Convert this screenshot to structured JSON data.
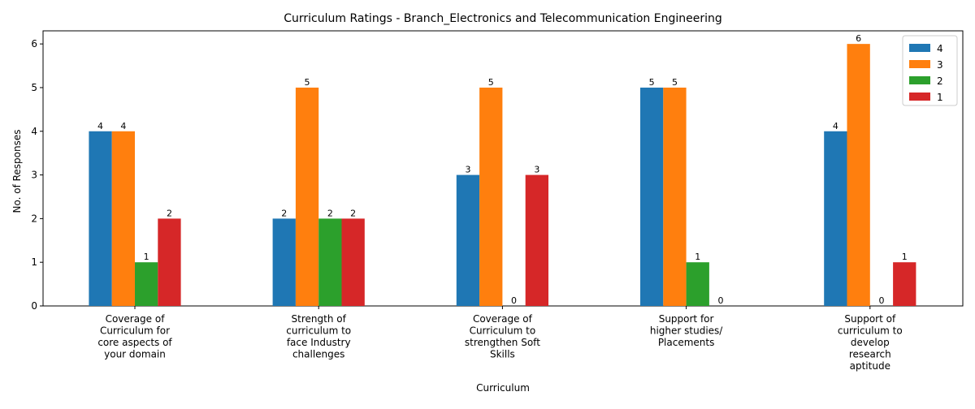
{
  "chart_data": {
    "type": "bar",
    "title": "Curriculum Ratings - Branch_Electronics and Telecommunication Engineering",
    "xlabel": "Curriculum",
    "ylabel": "No. of Responses",
    "ylim": [
      0,
      6.3
    ],
    "yticks": [
      0,
      1,
      2,
      3,
      4,
      5,
      6
    ],
    "grid": false,
    "legend_position": "top-right",
    "categories": [
      [
        "Coverage of",
        "Curriculum for",
        "core aspects of",
        "your domain"
      ],
      [
        "Strength of",
        "curriculum to",
        "face Industry",
        "challenges"
      ],
      [
        "Coverage of",
        "Curriculum to",
        "strengthen Soft",
        "Skills"
      ],
      [
        "Support for",
        "higher studies/",
        "Placements"
      ],
      [
        "Support of",
        "curriculum to",
        "develop",
        "research",
        "aptitude"
      ]
    ],
    "series": [
      {
        "name": "4",
        "color": "#1f77b4",
        "values": [
          4,
          2,
          3,
          5,
          4
        ],
        "labels": [
          "4",
          "2",
          "3",
          "5",
          "4"
        ]
      },
      {
        "name": "3",
        "color": "#ff7f0e",
        "values": [
          4,
          5,
          5,
          5,
          6
        ],
        "labels": [
          "4",
          "5",
          "5",
          "5",
          "6"
        ]
      },
      {
        "name": "2",
        "color": "#2ca02c",
        "values": [
          1,
          2,
          0,
          1,
          0
        ],
        "labels": [
          "1",
          "2",
          "0",
          "1",
          "0"
        ]
      },
      {
        "name": "1",
        "color": "#d62728",
        "values": [
          2,
          2,
          3,
          0,
          null
        ],
        "labels": [
          "2",
          "2",
          "3",
          "0",
          "1"
        ]
      }
    ],
    "extra_values": {
      "series_1_category_5": 1
    }
  }
}
